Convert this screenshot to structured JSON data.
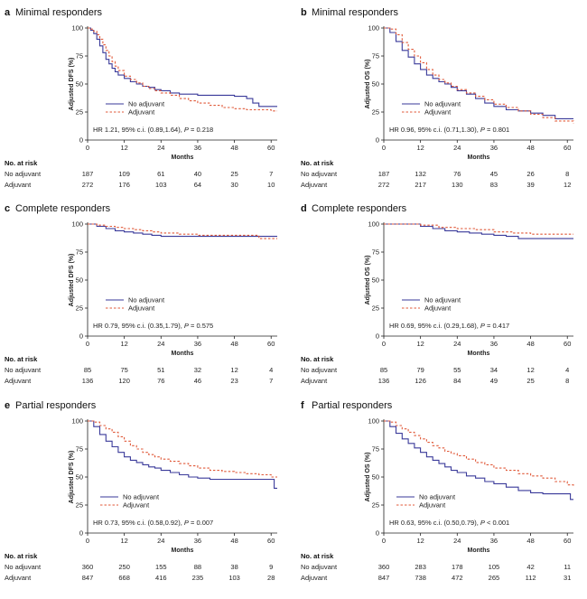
{
  "chart_data": [
    {
      "type": "line",
      "letter": "a",
      "title": "Minimal responders",
      "ylabel": "Adjusted DFS (%)",
      "xlabel": "Months",
      "xlim": [
        0,
        62
      ],
      "ylim": [
        0,
        100
      ],
      "xticks": [
        0,
        12,
        24,
        36,
        48,
        60
      ],
      "yticks": [
        0,
        25,
        50,
        75,
        100
      ],
      "legend": "center-right",
      "hr": "HR 1.21, 95% c.i. (0.89,1.64), ",
      "p_label": "P",
      "p_value": " = 0.218",
      "series": [
        {
          "name": "No adjuvant",
          "style": "solid",
          "color": "#3a3a9a",
          "x": [
            0,
            1,
            2,
            3,
            4,
            5,
            6,
            7,
            8,
            9,
            10,
            12,
            14,
            16,
            18,
            20,
            22,
            24,
            27,
            30,
            33,
            36,
            40,
            44,
            48,
            52,
            54,
            56,
            62
          ],
          "y": [
            100,
            98,
            95,
            90,
            84,
            78,
            72,
            68,
            64,
            61,
            58,
            55,
            52,
            50,
            48,
            47,
            45,
            44,
            42,
            41,
            41,
            40,
            40,
            40,
            39,
            37,
            33,
            30,
            30
          ]
        },
        {
          "name": "Adjuvant",
          "style": "dashed",
          "color": "#e05a3a",
          "x": [
            0,
            1,
            2,
            3,
            4,
            5,
            6,
            7,
            8,
            9,
            10,
            12,
            14,
            16,
            18,
            20,
            22,
            24,
            27,
            30,
            33,
            36,
            40,
            44,
            48,
            52,
            56,
            60,
            62
          ],
          "y": [
            100,
            99,
            97,
            94,
            90,
            85,
            80,
            75,
            70,
            66,
            62,
            57,
            54,
            51,
            48,
            46,
            44,
            42,
            40,
            37,
            35,
            33,
            31,
            29,
            28,
            27,
            27,
            26,
            26
          ]
        }
      ],
      "risk_header": "No. at risk",
      "risk_rows": [
        {
          "label": "No adjuvant",
          "values": [
            "187",
            "109",
            "61",
            "40",
            "25",
            "7"
          ]
        },
        {
          "label": "Adjuvant",
          "values": [
            "272",
            "176",
            "103",
            "64",
            "30",
            "10"
          ]
        }
      ]
    },
    {
      "type": "line",
      "letter": "b",
      "title": "Minimal responders",
      "ylabel": "Adjusted OS (%)",
      "xlabel": "Months",
      "xlim": [
        0,
        62
      ],
      "ylim": [
        0,
        100
      ],
      "xticks": [
        0,
        12,
        24,
        36,
        48,
        60
      ],
      "yticks": [
        0,
        25,
        50,
        75,
        100
      ],
      "legend": "center-right",
      "hr": "HR 0.96, 95% c.i. (0.71,1.30), ",
      "p_label": "P",
      "p_value": " = 0.801",
      "series": [
        {
          "name": "No adjuvant",
          "style": "solid",
          "color": "#3a3a9a",
          "x": [
            0,
            2,
            4,
            6,
            8,
            10,
            12,
            14,
            16,
            18,
            20,
            22,
            24,
            27,
            30,
            33,
            36,
            40,
            44,
            48,
            52,
            56,
            62
          ],
          "y": [
            100,
            96,
            88,
            80,
            74,
            68,
            63,
            58,
            55,
            52,
            50,
            47,
            44,
            41,
            37,
            33,
            30,
            27,
            26,
            24,
            22,
            19,
            19
          ]
        },
        {
          "name": "Adjuvant",
          "style": "dashed",
          "color": "#e05a3a",
          "x": [
            0,
            2,
            4,
            6,
            8,
            10,
            12,
            14,
            16,
            18,
            20,
            22,
            24,
            27,
            30,
            33,
            36,
            40,
            44,
            48,
            52,
            56,
            62
          ],
          "y": [
            100,
            99,
            94,
            87,
            81,
            75,
            69,
            63,
            58,
            54,
            51,
            48,
            45,
            42,
            39,
            36,
            32,
            29,
            26,
            23,
            20,
            17,
            15
          ]
        }
      ],
      "risk_header": "No. at risk",
      "risk_rows": [
        {
          "label": "No adjuvant",
          "values": [
            "187",
            "132",
            "76",
            "45",
            "26",
            "8"
          ]
        },
        {
          "label": "Adjuvant",
          "values": [
            "272",
            "217",
            "130",
            "83",
            "39",
            "12"
          ]
        }
      ]
    },
    {
      "type": "line",
      "letter": "c",
      "title": "Complete responders",
      "ylabel": "Adjusted DFS (%)",
      "xlabel": "Months",
      "xlim": [
        0,
        62
      ],
      "ylim": [
        0,
        100
      ],
      "xticks": [
        0,
        12,
        24,
        36,
        48,
        60
      ],
      "yticks": [
        0,
        25,
        50,
        75,
        100
      ],
      "legend": "center-right",
      "hr": "HR 0.79, 95% c.i. (0.35,1.79), ",
      "p_label": "P",
      "p_value": " = 0.575",
      "series": [
        {
          "name": "No adjuvant",
          "style": "solid",
          "color": "#3a3a9a",
          "x": [
            0,
            3,
            6,
            9,
            12,
            15,
            18,
            21,
            24,
            30,
            36,
            42,
            48,
            54,
            62
          ],
          "y": [
            100,
            98,
            96,
            94,
            93,
            92,
            91,
            90,
            89,
            89,
            89,
            89,
            89,
            89,
            89
          ]
        },
        {
          "name": "Adjuvant",
          "style": "dashed",
          "color": "#e05a3a",
          "x": [
            0,
            3,
            6,
            9,
            12,
            15,
            18,
            21,
            24,
            30,
            36,
            42,
            48,
            54,
            56,
            62
          ],
          "y": [
            100,
            99,
            98,
            97,
            96,
            95,
            94,
            93,
            92,
            91,
            90,
            90,
            90,
            90,
            87,
            87
          ]
        }
      ],
      "risk_header": "No. at risk",
      "risk_rows": [
        {
          "label": "No adjuvant",
          "values": [
            "85",
            "75",
            "51",
            "32",
            "12",
            "4"
          ]
        },
        {
          "label": "Adjuvant",
          "values": [
            "136",
            "120",
            "76",
            "46",
            "23",
            "7"
          ]
        }
      ]
    },
    {
      "type": "line",
      "letter": "d",
      "title": "Complete responders",
      "ylabel": "Adjusted OS (%)",
      "xlabel": "Months",
      "xlim": [
        0,
        62
      ],
      "ylim": [
        0,
        100
      ],
      "xticks": [
        0,
        12,
        24,
        36,
        48,
        60
      ],
      "yticks": [
        0,
        25,
        50,
        75,
        100
      ],
      "legend": "center-right",
      "hr": "HR 0.69, 95% c.i. (0.29,1.68), ",
      "p_label": "P",
      "p_value": " = 0.417",
      "series": [
        {
          "name": "No adjuvant",
          "style": "solid",
          "color": "#3a3a9a",
          "x": [
            0,
            6,
            12,
            16,
            20,
            24,
            28,
            32,
            36,
            40,
            44,
            48,
            62
          ],
          "y": [
            100,
            100,
            98,
            96,
            94,
            93,
            92,
            91,
            90,
            89,
            87,
            87,
            87
          ]
        },
        {
          "name": "Adjuvant",
          "style": "dashed",
          "color": "#e05a3a",
          "x": [
            0,
            6,
            12,
            18,
            24,
            30,
            36,
            42,
            48,
            62
          ],
          "y": [
            100,
            100,
            99,
            97,
            96,
            95,
            93,
            92,
            91,
            91
          ]
        }
      ],
      "risk_header": "No. at risk",
      "risk_rows": [
        {
          "label": "No adjuvant",
          "values": [
            "85",
            "79",
            "55",
            "34",
            "12",
            "4"
          ]
        },
        {
          "label": "Adjuvant",
          "values": [
            "136",
            "126",
            "84",
            "49",
            "25",
            "8"
          ]
        }
      ]
    },
    {
      "type": "line",
      "letter": "e",
      "title": "Partial responders",
      "ylabel": "Adjusted DFS (%)",
      "xlabel": "Months",
      "xlim": [
        0,
        62
      ],
      "ylim": [
        0,
        100
      ],
      "xticks": [
        0,
        12,
        24,
        36,
        48,
        60
      ],
      "yticks": [
        0,
        25,
        50,
        75,
        100
      ],
      "legend": "center-left",
      "hr": "HR 0.73, 95% c.i. (0.58,0.92), ",
      "p_label": "P",
      "p_value": " = 0.007",
      "series": [
        {
          "name": "No adjuvant",
          "style": "solid",
          "color": "#3a3a9a",
          "x": [
            0,
            2,
            4,
            6,
            8,
            10,
            12,
            14,
            16,
            18,
            20,
            22,
            24,
            27,
            30,
            33,
            36,
            40,
            44,
            48,
            52,
            56,
            60,
            61,
            62
          ],
          "y": [
            100,
            95,
            88,
            82,
            77,
            72,
            68,
            65,
            63,
            61,
            59,
            58,
            56,
            54,
            52,
            50,
            49,
            48,
            48,
            48,
            48,
            48,
            48,
            40,
            40
          ]
        },
        {
          "name": "Adjuvant",
          "style": "dashed",
          "color": "#e05a3a",
          "x": [
            0,
            2,
            4,
            6,
            8,
            10,
            12,
            14,
            16,
            18,
            20,
            22,
            24,
            27,
            30,
            33,
            36,
            40,
            44,
            48,
            52,
            56,
            60,
            62
          ],
          "y": [
            100,
            99,
            96,
            93,
            90,
            86,
            82,
            78,
            75,
            72,
            70,
            68,
            66,
            64,
            62,
            60,
            58,
            56,
            55,
            54,
            53,
            52,
            50,
            50
          ]
        }
      ],
      "risk_header": "No. at risk",
      "risk_rows": [
        {
          "label": "No adjuvant",
          "values": [
            "360",
            "250",
            "155",
            "88",
            "38",
            "9"
          ]
        },
        {
          "label": "Adjuvant",
          "values": [
            "847",
            "668",
            "416",
            "235",
            "103",
            "28"
          ]
        }
      ]
    },
    {
      "type": "line",
      "letter": "f",
      "title": "Partial responders",
      "ylabel": "Adjusted OS (%)",
      "xlabel": "Months",
      "xlim": [
        0,
        62
      ],
      "ylim": [
        0,
        100
      ],
      "xticks": [
        0,
        12,
        24,
        36,
        48,
        60
      ],
      "yticks": [
        0,
        25,
        50,
        75,
        100
      ],
      "legend": "center-left",
      "hr": "HR 0.63, 95% c.i. (0.50,0.79), ",
      "p_label": "P",
      "p_value": " < 0.001",
      "series": [
        {
          "name": "No adjuvant",
          "style": "solid",
          "color": "#3a3a9a",
          "x": [
            0,
            2,
            4,
            6,
            8,
            10,
            12,
            14,
            16,
            18,
            20,
            22,
            24,
            27,
            30,
            33,
            36,
            40,
            44,
            48,
            52,
            56,
            60,
            61,
            62
          ],
          "y": [
            100,
            95,
            89,
            84,
            80,
            76,
            72,
            68,
            65,
            62,
            59,
            56,
            54,
            51,
            49,
            46,
            44,
            41,
            38,
            36,
            35,
            35,
            35,
            30,
            30
          ]
        },
        {
          "name": "Adjuvant",
          "style": "dashed",
          "color": "#e05a3a",
          "x": [
            0,
            2,
            4,
            6,
            8,
            10,
            12,
            14,
            16,
            18,
            20,
            22,
            24,
            27,
            30,
            33,
            36,
            40,
            44,
            48,
            52,
            56,
            60,
            62
          ],
          "y": [
            100,
            99,
            96,
            93,
            90,
            87,
            84,
            81,
            78,
            76,
            73,
            71,
            69,
            66,
            63,
            61,
            58,
            56,
            53,
            51,
            49,
            46,
            43,
            41
          ]
        }
      ],
      "risk_header": "No. at risk",
      "risk_rows": [
        {
          "label": "No adjuvant",
          "values": [
            "360",
            "283",
            "178",
            "105",
            "42",
            "11"
          ]
        },
        {
          "label": "Adjuvant",
          "values": [
            "847",
            "738",
            "472",
            "265",
            "112",
            "31"
          ]
        }
      ]
    }
  ]
}
